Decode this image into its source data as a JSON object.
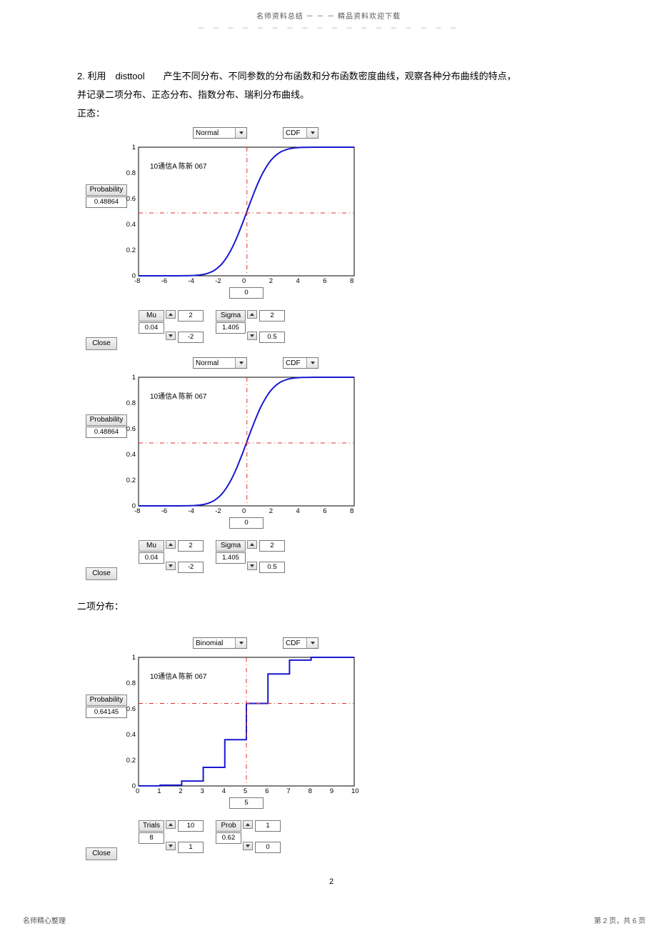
{
  "header": {
    "line1": "名师资料总结 － － － 精品资料欢迎下载",
    "dots": "－ － － － － － － － － － － － － － － － － －"
  },
  "para1": "2. 利用　disttool　　产生不同分布、不同参数的分布函数和分布函数密度曲线，观察各种分布曲线的特点，",
  "para2": "并记录二项分布、正态分布、指数分布、瑞利分布曲线。",
  "para3": "正态：",
  "para4": "二项分布：",
  "panels": {
    "normal": {
      "dist_dd": "Normal",
      "func_dd": "CDF",
      "prob_label": "Probability",
      "prob_value": "0.48864",
      "close": "Close",
      "annotation": "10通信A 陈新 067",
      "x_center_box": "0",
      "yticks": [
        "0",
        "0.2",
        "0.4",
        "0.6",
        "0.8",
        "1"
      ],
      "xticks": [
        "-8",
        "-6",
        "-4",
        "-2",
        "0",
        "2",
        "4",
        "6",
        "8"
      ],
      "mu_label": "Mu",
      "mu_val": "0.04",
      "mu_upper": "2",
      "mu_lower": "-2",
      "sigma_label": "Sigma",
      "sigma_val": "1.405",
      "sigma_upper": "2",
      "sigma_lower": "0.5",
      "curve_color": "#1818cf",
      "dash_color": "#e03030",
      "axis_color": "#000000",
      "bg": "#ffffff"
    },
    "binomial": {
      "dist_dd": "Binomial",
      "func_dd": "CDF",
      "prob_label": "Probability",
      "prob_value": "0.64145",
      "close": "Close",
      "annotation": "10通信A 陈新 067",
      "x_center_box": "5",
      "yticks": [
        "0",
        "0.2",
        "0.4",
        "0.6",
        "0.8",
        "1"
      ],
      "xticks": [
        "0",
        "1",
        "2",
        "3",
        "4",
        "5",
        "6",
        "7",
        "8",
        "9",
        "10"
      ],
      "trials_label": "Trials",
      "trials_val": "8",
      "trials_upper": "10",
      "trials_lower": "1",
      "probp_label": "Prob",
      "probp_val": "0.62",
      "probp_upper": "1",
      "probp_lower": "0",
      "curve_color": "#1818cf",
      "dash_color": "#e03030",
      "axis_color": "#000000",
      "bg": "#ffffff"
    }
  },
  "page_num": "2",
  "footer_left": "名师精心整理",
  "footer_right": "第 2 页，共 6 页"
}
